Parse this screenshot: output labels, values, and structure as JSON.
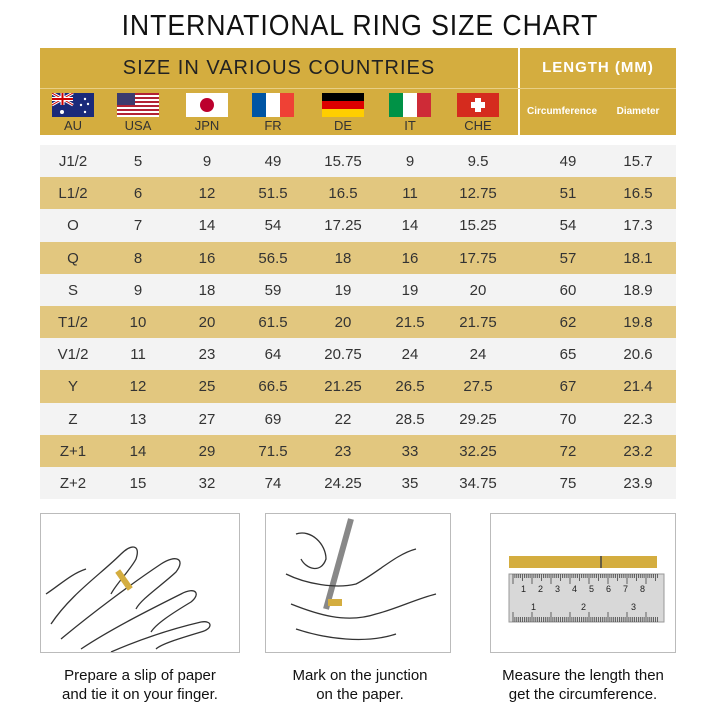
{
  "title": "INTERNATIONAL RING SIZE CHART",
  "header": {
    "countries_label": "SIZE IN VARIOUS COUNTRIES",
    "length_label": "LENGTH (MM)",
    "countries": [
      {
        "code": "AU",
        "flag": "australia-flag"
      },
      {
        "code": "USA",
        "flag": "usa-flag"
      },
      {
        "code": "JPN",
        "flag": "japan-flag"
      },
      {
        "code": "FR",
        "flag": "france-flag"
      },
      {
        "code": "DE",
        "flag": "germany-flag"
      },
      {
        "code": "IT",
        "flag": "italy-flag"
      },
      {
        "code": "CHE",
        "flag": "switzerland-flag"
      }
    ],
    "circumference": "Circumference",
    "diameter": "Diameter"
  },
  "colors": {
    "gold": "#d4ad3f",
    "band": "#e2c77f"
  },
  "rows": [
    [
      "J1/2",
      "5",
      "9",
      "49",
      "15.75",
      "9",
      "9.5",
      "49",
      "15.7"
    ],
    [
      "L1/2",
      "6",
      "12",
      "51.5",
      "16.5",
      "11",
      "12.75",
      "51",
      "16.5"
    ],
    [
      "O",
      "7",
      "14",
      "54",
      "17.25",
      "14",
      "15.25",
      "54",
      "17.3"
    ],
    [
      "Q",
      "8",
      "16",
      "56.5",
      "18",
      "16",
      "17.75",
      "57",
      "18.1"
    ],
    [
      "S",
      "9",
      "18",
      "59",
      "19",
      "19",
      "20",
      "60",
      "18.9"
    ],
    [
      "T1/2",
      "10",
      "20",
      "61.5",
      "20",
      "21.5",
      "21.75",
      "62",
      "19.8"
    ],
    [
      "V1/2",
      "11",
      "23",
      "64",
      "20.75",
      "24",
      "24",
      "65",
      "20.6"
    ],
    [
      "Y",
      "12",
      "25",
      "66.5",
      "21.25",
      "26.5",
      "27.5",
      "67",
      "21.4"
    ],
    [
      "Z",
      "13",
      "27",
      "69",
      "22",
      "28.5",
      "29.25",
      "70",
      "22.3"
    ],
    [
      "Z+1",
      "14",
      "29",
      "71.5",
      "23",
      "33",
      "32.25",
      "72",
      "23.2"
    ],
    [
      "Z+2",
      "15",
      "32",
      "74",
      "24.25",
      "35",
      "34.75",
      "75",
      "23.9"
    ]
  ],
  "steps": [
    {
      "line1": "Prepare a slip of paper",
      "line2": "and tie it on your finger."
    },
    {
      "line1": "Mark on the junction",
      "line2": "on the paper."
    },
    {
      "line1": "Measure the length then",
      "line2": "get the circumference."
    }
  ],
  "ruler": {
    "ticks": [
      "1",
      "2",
      "3",
      "4",
      "5",
      "6",
      "7",
      "8"
    ],
    "cm": [
      "1",
      "2",
      "3"
    ]
  }
}
